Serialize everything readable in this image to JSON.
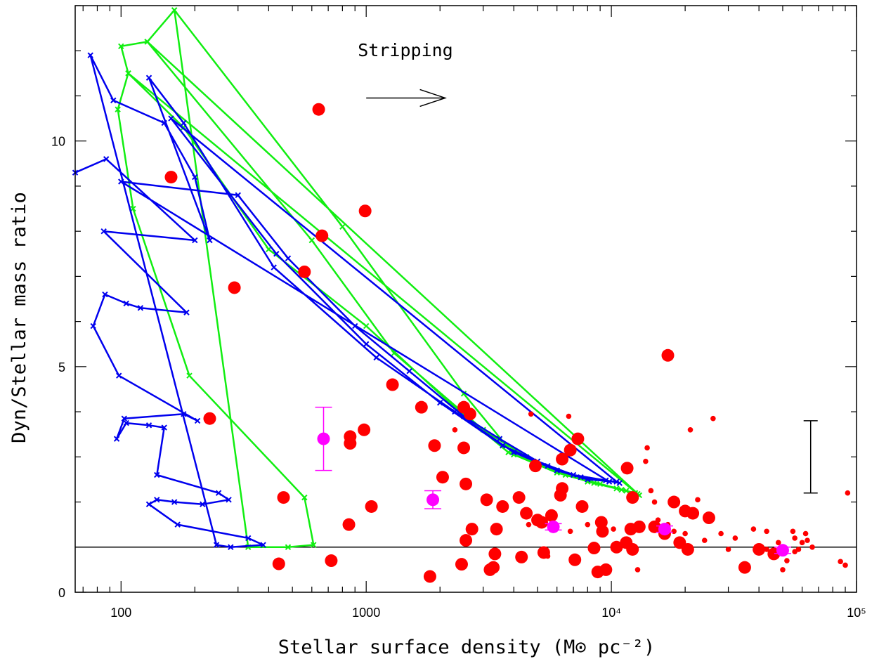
{
  "chart_data": {
    "type": "scatter",
    "title": "",
    "xlabel": "Stellar surface density (M⊙ pc⁻²)",
    "ylabel": "Dyn/Stellar mass ratio",
    "xscale": "log",
    "xlim": [
      65,
      100000
    ],
    "ylim": [
      0,
      13
    ],
    "x_tick_labels": [
      "100",
      "1000",
      "10⁴",
      "10⁵"
    ],
    "x_tick_values": [
      100,
      1000,
      10000,
      100000
    ],
    "y_tick_labels": [
      "0",
      "5",
      "10"
    ],
    "y_tick_values": [
      0,
      5,
      10
    ],
    "grid": false,
    "legend": "none",
    "annotation": {
      "text": "Stripping",
      "arrow_from": [
        1000,
        11.0
      ],
      "arrow_to": [
        2100,
        11.0
      ]
    },
    "reference_line_y": 1,
    "error_bar_example": {
      "x": 65000,
      "y_low": 2.2,
      "y_high": 3.8
    },
    "colors": {
      "blue_track": "#0000ee",
      "green_track": "#11ee11",
      "red_points": "#ff0000",
      "magenta_points": "#ff00ff",
      "axes": "#000000"
    },
    "series": [
      {
        "kind": "line",
        "color": "#11ee11",
        "points": [
          [
            165,
            12.9
          ],
          [
            128,
            12.2
          ],
          [
            100,
            12.1
          ],
          [
            107,
            11.5
          ],
          [
            97,
            10.7
          ],
          [
            112,
            8.5
          ],
          [
            190,
            4.8
          ],
          [
            560,
            2.1
          ],
          [
            610,
            1.05
          ],
          [
            480,
            1.0
          ],
          [
            330,
            1.0
          ],
          [
            165,
            12.9
          ],
          [
            800,
            8.1
          ],
          [
            2500,
            4.4
          ],
          [
            4000,
            3.05
          ],
          [
            6000,
            2.7
          ],
          [
            8000,
            2.45
          ],
          [
            10500,
            2.3
          ],
          [
            12500,
            2.2
          ],
          [
            13000,
            2.15
          ],
          [
            128,
            12.2
          ],
          [
            600,
            7.8
          ],
          [
            1300,
            5.3
          ],
          [
            3000,
            3.6
          ],
          [
            4500,
            3.0
          ],
          [
            6500,
            2.6
          ],
          [
            9000,
            2.4
          ],
          [
            11500,
            2.25
          ],
          [
            12800,
            2.18
          ],
          [
            107,
            11.5
          ],
          [
            180,
            10.3
          ],
          [
            400,
            7.6
          ],
          [
            1000,
            5.9
          ],
          [
            2400,
            4.0
          ],
          [
            3800,
            3.1
          ],
          [
            6000,
            2.65
          ],
          [
            8500,
            2.42
          ],
          [
            11000,
            2.27
          ],
          [
            12500,
            2.2
          ]
        ]
      },
      {
        "kind": "line",
        "color": "#0000ee",
        "points": [
          [
            65,
            9.3
          ],
          [
            87,
            9.6
          ],
          [
            200,
            7.8
          ],
          [
            85,
            8.0
          ],
          [
            185,
            6.2
          ],
          [
            120,
            6.3
          ],
          [
            105,
            6.4
          ],
          [
            86,
            6.6
          ],
          [
            77,
            5.9
          ],
          [
            98,
            4.8
          ],
          [
            205,
            3.8
          ],
          [
            180,
            3.95
          ],
          [
            103,
            3.85
          ],
          [
            96,
            3.4
          ],
          [
            105,
            3.75
          ],
          [
            130,
            3.7
          ],
          [
            150,
            3.65
          ],
          [
            140,
            2.6
          ],
          [
            250,
            2.2
          ],
          [
            275,
            2.05
          ],
          [
            215,
            1.95
          ],
          [
            165,
            2.0
          ],
          [
            140,
            2.05
          ],
          [
            130,
            1.95
          ],
          [
            170,
            1.5
          ],
          [
            330,
            1.2
          ],
          [
            380,
            1.05
          ],
          [
            280,
            1.0
          ],
          [
            245,
            1.05
          ],
          [
            75,
            11.9
          ],
          [
            93,
            10.9
          ],
          [
            150,
            10.4
          ],
          [
            200,
            9.2
          ],
          [
            230,
            7.8
          ],
          [
            130,
            11.4
          ],
          [
            180,
            10.4
          ],
          [
            420,
            7.2
          ],
          [
            1100,
            5.2
          ],
          [
            2300,
            4.0
          ],
          [
            4000,
            3.1
          ],
          [
            6000,
            2.7
          ],
          [
            8000,
            2.5
          ],
          [
            10500,
            2.45
          ],
          [
            160,
            10.5
          ],
          [
            430,
            7.5
          ],
          [
            1000,
            5.5
          ],
          [
            2000,
            4.2
          ],
          [
            3600,
            3.25
          ],
          [
            5500,
            2.8
          ],
          [
            7500,
            2.55
          ],
          [
            9800,
            2.45
          ],
          [
            100,
            9.1
          ],
          [
            300,
            8.8
          ],
          [
            480,
            7.4
          ],
          [
            900,
            5.9
          ],
          [
            1500,
            4.9
          ],
          [
            2500,
            3.9
          ],
          [
            3500,
            3.4
          ],
          [
            5000,
            2.9
          ],
          [
            7000,
            2.6
          ],
          [
            9500,
            2.48
          ],
          [
            10800,
            2.42
          ]
        ]
      },
      {
        "kind": "points",
        "color": "#ff0000",
        "points": [
          [
            160,
            9.2
          ],
          [
            230,
            3.85
          ],
          [
            290,
            6.75
          ],
          [
            440,
            0.63
          ],
          [
            460,
            2.1
          ],
          [
            560,
            7.1
          ],
          [
            640,
            10.7
          ],
          [
            660,
            7.9
          ],
          [
            720,
            0.7
          ],
          [
            850,
            1.5
          ],
          [
            860,
            3.45
          ],
          [
            860,
            3.3
          ],
          [
            980,
            3.6
          ],
          [
            990,
            8.45
          ],
          [
            1050,
            1.9
          ],
          [
            1280,
            4.6
          ],
          [
            1680,
            4.1
          ],
          [
            1820,
            0.35
          ],
          [
            1900,
            3.25
          ],
          [
            2050,
            2.55
          ],
          [
            2450,
            0.62
          ],
          [
            2500,
            4.1
          ],
          [
            2500,
            3.2
          ],
          [
            2550,
            2.4
          ],
          [
            2550,
            1.15
          ],
          [
            2650,
            3.95
          ],
          [
            2700,
            1.4
          ],
          [
            3100,
            2.05
          ],
          [
            3200,
            0.5
          ],
          [
            3300,
            0.55
          ],
          [
            3350,
            0.85
          ],
          [
            3400,
            1.4
          ],
          [
            3600,
            1.9
          ],
          [
            4200,
            2.1
          ],
          [
            4300,
            0.78
          ],
          [
            4500,
            1.75
          ],
          [
            4900,
            2.8
          ],
          [
            5000,
            1.6
          ],
          [
            5200,
            1.55
          ],
          [
            5300,
            0.88
          ],
          [
            5700,
            1.7
          ],
          [
            6200,
            2.15
          ],
          [
            6300,
            2.95
          ],
          [
            6300,
            2.3
          ],
          [
            6800,
            3.15
          ],
          [
            7100,
            0.72
          ],
          [
            7300,
            3.4
          ],
          [
            7600,
            1.9
          ],
          [
            8500,
            0.98
          ],
          [
            8800,
            0.45
          ],
          [
            9100,
            1.55
          ],
          [
            9200,
            1.35
          ],
          [
            9500,
            0.5
          ],
          [
            10500,
            1.0
          ],
          [
            11600,
            2.75
          ],
          [
            12000,
            1.4
          ],
          [
            12200,
            2.1
          ],
          [
            12200,
            0.95
          ],
          [
            15000,
            1.45
          ],
          [
            17000,
            5.25
          ],
          [
            18000,
            2.0
          ],
          [
            20000,
            1.8
          ],
          [
            20500,
            0.95
          ],
          [
            21500,
            1.75
          ],
          [
            25000,
            1.65
          ],
          [
            35000,
            0.55
          ],
          [
            40000,
            0.95
          ],
          [
            13000,
            1.45
          ],
          [
            16500,
            1.3
          ],
          [
            19000,
            1.1
          ],
          [
            46000,
            0.85
          ],
          [
            11500,
            1.1
          ]
        ]
      },
      {
        "kind": "small_points",
        "color": "#ff0000",
        "points": [
          [
            2300,
            3.6
          ],
          [
            4700,
            3.95
          ],
          [
            6700,
            3.9
          ],
          [
            14000,
            3.2
          ],
          [
            13800,
            2.9
          ],
          [
            21000,
            3.6
          ],
          [
            26000,
            3.85
          ],
          [
            22500,
            2.05
          ],
          [
            14500,
            2.25
          ],
          [
            15000,
            2.0
          ],
          [
            15500,
            1.6
          ],
          [
            17000,
            1.5
          ],
          [
            18000,
            1.35
          ],
          [
            20000,
            1.3
          ],
          [
            24000,
            1.15
          ],
          [
            28000,
            1.3
          ],
          [
            30000,
            0.95
          ],
          [
            32000,
            1.2
          ],
          [
            38000,
            1.4
          ],
          [
            43000,
            0.95
          ],
          [
            48000,
            1.1
          ],
          [
            52000,
            0.7
          ],
          [
            55000,
            1.35
          ],
          [
            56000,
            1.2
          ],
          [
            58000,
            0.95
          ],
          [
            60000,
            1.1
          ],
          [
            62000,
            1.3
          ],
          [
            63000,
            1.15
          ],
          [
            66000,
            1.0
          ],
          [
            50000,
            0.5
          ],
          [
            86000,
            0.68
          ],
          [
            90000,
            0.6
          ],
          [
            92000,
            2.2
          ],
          [
            4600,
            1.5
          ],
          [
            5500,
            0.8
          ],
          [
            6800,
            1.35
          ],
          [
            8000,
            1.5
          ],
          [
            10200,
            1.4
          ],
          [
            12800,
            0.5
          ],
          [
            43000,
            1.35
          ],
          [
            56000,
            0.9
          ]
        ]
      },
      {
        "kind": "points_with_errors",
        "color": "#ff00ff",
        "points": [
          [
            670,
            3.4,
            2.7,
            4.1
          ],
          [
            1870,
            2.05,
            1.85,
            2.25
          ],
          [
            5800,
            1.45,
            1.38,
            1.52
          ],
          [
            16500,
            1.4,
            1.33,
            1.47
          ],
          [
            50000,
            0.93,
            0.86,
            1.0
          ]
        ]
      }
    ]
  }
}
